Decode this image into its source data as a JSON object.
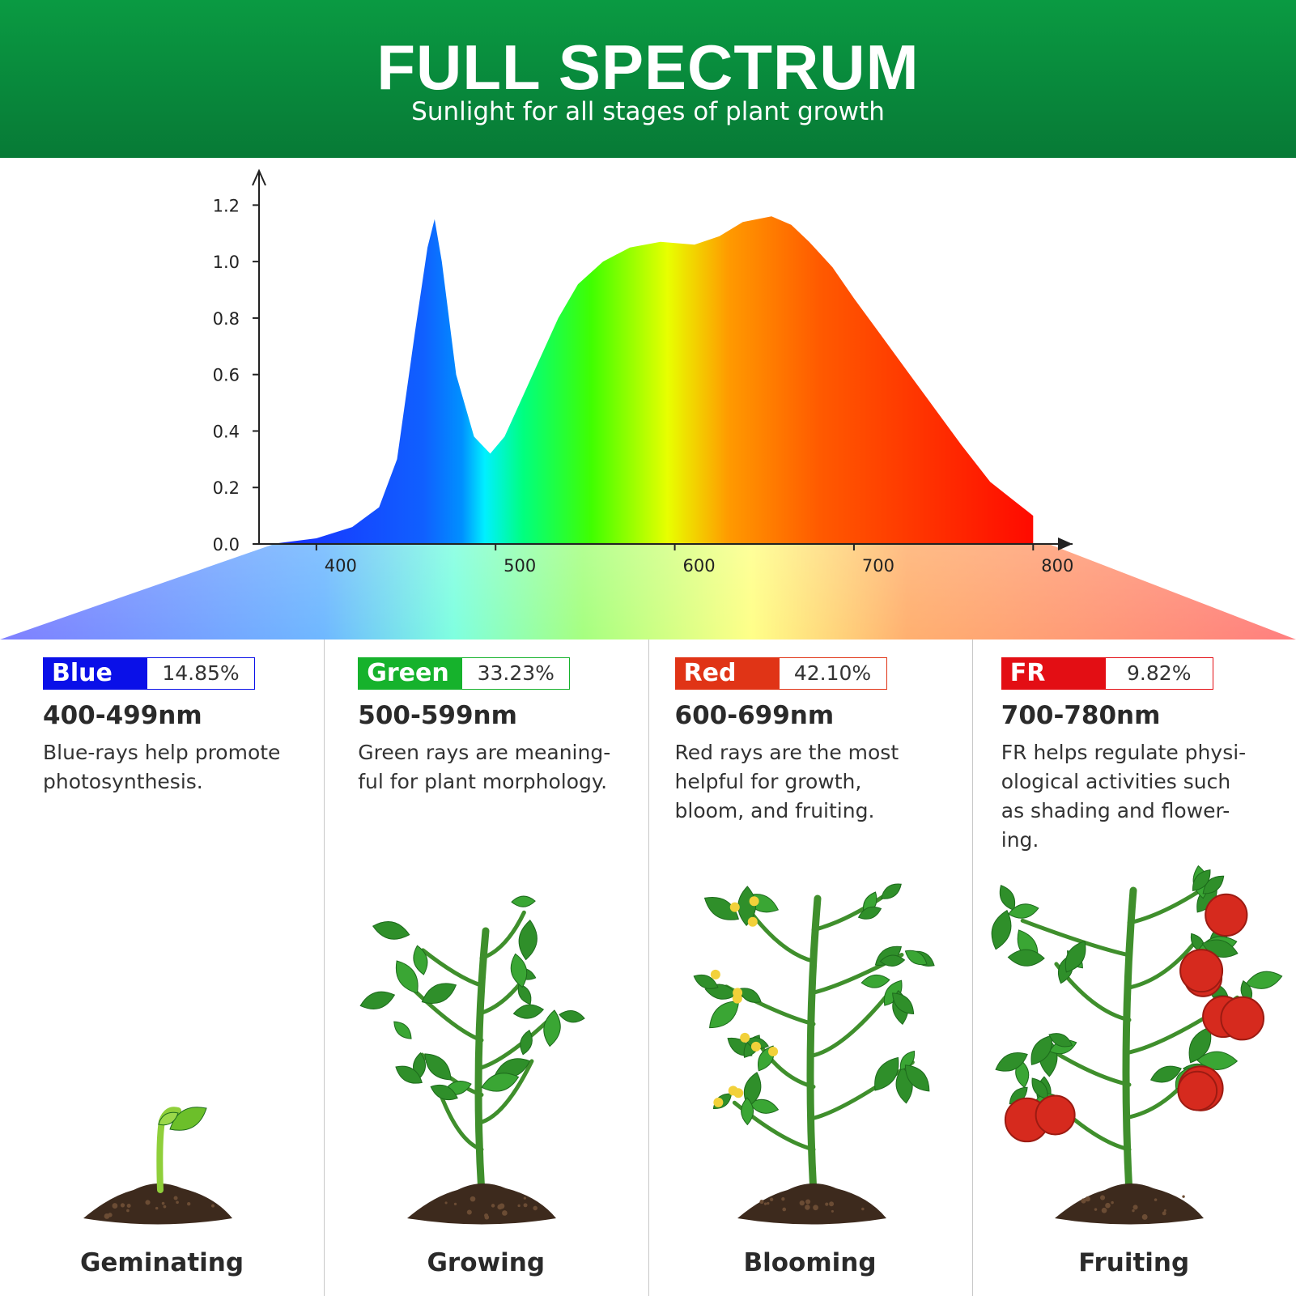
{
  "header": {
    "title": "FULL SPECTRUM",
    "subtitle": "Sunlight for all stages of plant growth"
  },
  "chart_data": {
    "type": "area",
    "x": [
      375,
      400,
      420,
      435,
      445,
      455,
      462,
      466,
      470,
      478,
      488,
      497,
      505,
      515,
      525,
      535,
      546,
      560,
      575,
      592,
      611,
      625,
      638,
      654,
      665,
      675,
      688,
      700,
      715,
      730,
      745,
      760,
      776,
      790,
      800
    ],
    "values": [
      0,
      0.02,
      0.06,
      0.13,
      0.3,
      0.75,
      1.05,
      1.15,
      1.0,
      0.6,
      0.38,
      0.32,
      0.38,
      0.52,
      0.66,
      0.8,
      0.92,
      1.0,
      1.05,
      1.07,
      1.06,
      1.09,
      1.14,
      1.16,
      1.13,
      1.07,
      0.98,
      0.87,
      0.74,
      0.61,
      0.48,
      0.35,
      0.22,
      0.15,
      0.1
    ],
    "xlim": [
      368,
      822
    ],
    "ylim": [
      0,
      1.31
    ],
    "xticks": [
      400,
      500,
      600,
      700,
      800
    ],
    "yticks": [
      {
        "value": 0,
        "label": "0.0"
      },
      {
        "value": 0.2,
        "label": "0.2"
      },
      {
        "value": 0.4,
        "label": "0.4"
      },
      {
        "value": 0.6,
        "label": "0.6"
      },
      {
        "value": 0.8,
        "label": "0.8"
      },
      {
        "value": 1.0,
        "label": "1.0"
      },
      {
        "value": 1.2,
        "label": "1.2"
      }
    ]
  },
  "panels": [
    {
      "name": "Blue",
      "color": "#0a10e8",
      "percent": "14.85%",
      "range": "400-499nm",
      "description": [
        "Blue-rays help promote",
        "photosynthesis."
      ],
      "stage": "Geminating"
    },
    {
      "name": "Green",
      "color": "#16b22c",
      "percent": "33.23%",
      "range": "500-599nm",
      "description": [
        "Green rays are meaning-",
        "ful for plant morphology."
      ],
      "stage": "Growing"
    },
    {
      "name": "Red",
      "color": "#e03416",
      "percent": "42.10%",
      "range": "600-699nm",
      "description": [
        "Red rays are the most",
        "helpful for growth,",
        "bloom, and fruiting."
      ],
      "stage": "Blooming"
    },
    {
      "name": "FR",
      "color": "#e30e14",
      "percent": "9.82%",
      "range": "700-780nm",
      "description": [
        "FR helps regulate physi-",
        "ological activities such",
        "as shading and flower-",
        "ing."
      ],
      "stage": "Fruiting"
    }
  ]
}
